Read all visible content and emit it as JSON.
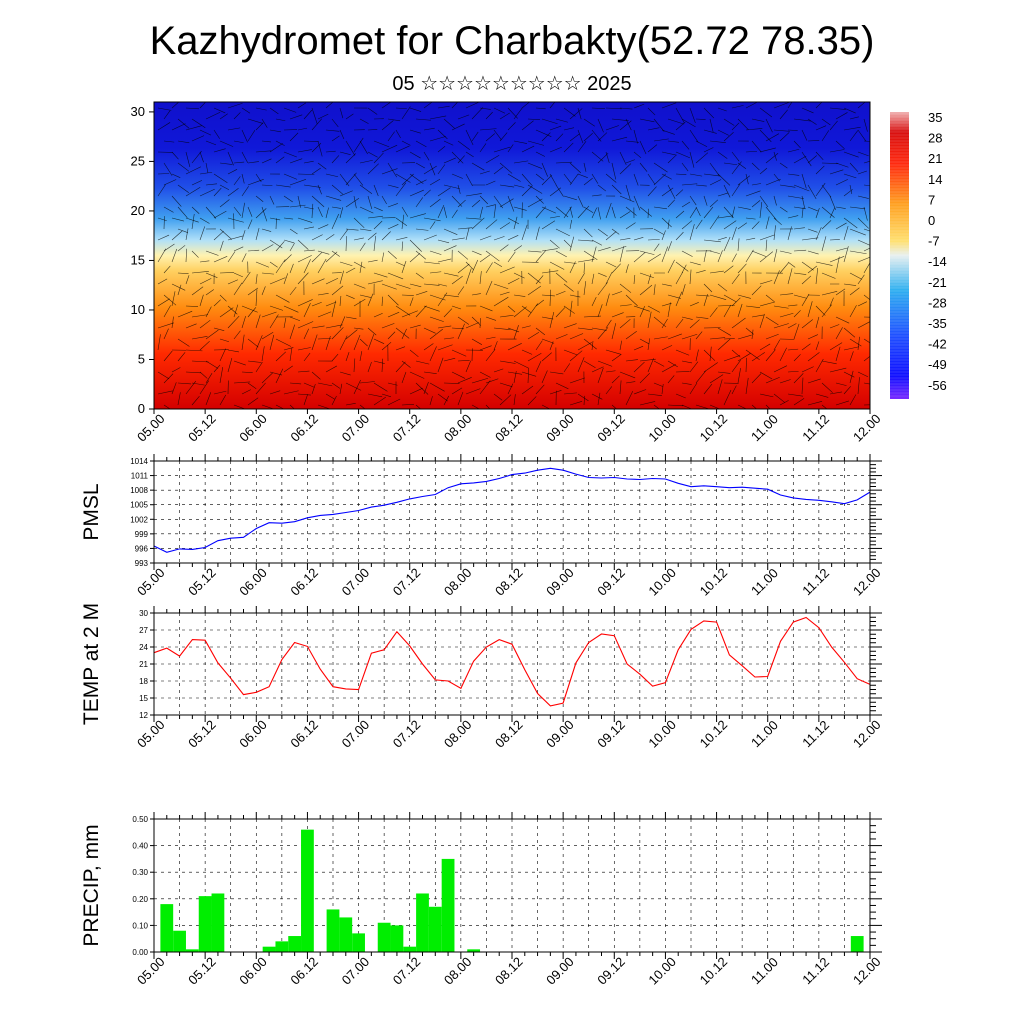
{
  "header": {
    "title": "Kazhydromet for Charbakty(52.72 78.35)",
    "subtitle": "05 ☆☆☆☆☆☆☆☆☆ 2025"
  },
  "time_labels": [
    "05.00",
    "05.12",
    "06.00",
    "06.12",
    "07.00",
    "07.12",
    "08.00",
    "08.12",
    "09.00",
    "09.12",
    "10.00",
    "10.12",
    "11.00",
    "11.12",
    "12.00"
  ],
  "colors": {
    "pmsl_line": "#0000ff",
    "temp_line": "#ff0000",
    "precip_bar": "#00ee00"
  },
  "chart_data": [
    {
      "type": "heatmap",
      "description_free": true,
      "y_ticks": [
        "0",
        "5",
        "10",
        "15",
        "20",
        "25",
        "30"
      ],
      "ylim": [
        0,
        31
      ],
      "colorbar": {
        "labels": [
          "35",
          "28",
          "21",
          "14",
          "7",
          "0",
          "-7",
          "-14",
          "-21",
          "-28",
          "-35",
          "-42",
          "-49",
          "-56"
        ],
        "range": [
          -60,
          38
        ]
      },
      "bands": [
        {
          "from": 0,
          "to": 6,
          "value": 30
        },
        {
          "from": 6,
          "to": 12,
          "value": 18
        },
        {
          "from": 12,
          "to": 16,
          "value": 4
        },
        {
          "from": 16,
          "to": 19,
          "value": -20
        },
        {
          "from": 19,
          "to": 23,
          "value": -42
        },
        {
          "from": 23,
          "to": 31,
          "value": -56
        }
      ],
      "vectors": "wind barbs overlay"
    },
    {
      "type": "line",
      "ylabel": "PMSL",
      "y_ticks": [
        "993",
        "996",
        "999",
        "1002",
        "1005",
        "1008",
        "1011",
        "1014"
      ],
      "ylim": [
        993,
        1014
      ],
      "grid": true,
      "x": [
        0,
        3,
        6,
        9,
        12,
        15,
        18,
        21,
        24,
        27,
        30,
        33,
        36,
        39,
        42,
        45,
        48,
        51,
        54,
        57,
        60,
        63,
        66,
        69,
        72,
        75,
        78,
        81,
        84,
        87,
        90,
        93,
        96,
        99,
        102,
        105,
        108,
        111,
        114,
        117,
        120,
        123,
        126,
        129,
        132,
        135,
        138,
        141,
        144,
        147,
        150,
        153,
        156,
        159,
        162,
        165,
        168
      ],
      "values": [
        996.5,
        995.2,
        995.9,
        995.8,
        996.2,
        997.6,
        998.1,
        998.3,
        1000.1,
        1001.3,
        1001.2,
        1001.5,
        1002.3,
        1002.8,
        1003.0,
        1003.4,
        1003.8,
        1004.5,
        1004.9,
        1005.5,
        1006.2,
        1006.7,
        1007.1,
        1008.5,
        1009.3,
        1009.5,
        1009.8,
        1010.4,
        1011.2,
        1011.5,
        1012.1,
        1012.5,
        1012.1,
        1011.3,
        1010.6,
        1010.5,
        1010.6,
        1010.3,
        1010.2,
        1010.4,
        1010.3,
        1009.4,
        1008.7,
        1008.9,
        1008.7,
        1008.5,
        1008.6,
        1008.4,
        1008.2,
        1007.0,
        1006.4,
        1006.1,
        1005.9,
        1005.6,
        1005.2,
        1006.0,
        1007.6
      ]
    },
    {
      "type": "line",
      "ylabel": "TEMP at 2 M",
      "y_ticks": [
        "12",
        "15",
        "18",
        "21",
        "24",
        "27",
        "30"
      ],
      "ylim": [
        12,
        30
      ],
      "grid": true,
      "x": [
        0,
        3,
        6,
        9,
        12,
        15,
        18,
        21,
        24,
        27,
        30,
        33,
        36,
        39,
        42,
        45,
        48,
        51,
        54,
        57,
        60,
        63,
        66,
        69,
        72,
        75,
        78,
        81,
        84,
        87,
        90,
        93,
        96,
        99,
        102,
        105,
        108,
        111,
        114,
        117,
        120,
        123,
        126,
        129,
        132,
        135,
        138,
        141,
        144,
        147,
        150,
        153,
        156,
        159,
        162,
        165,
        168
      ],
      "values": [
        23.0,
        23.8,
        22.4,
        25.3,
        25.2,
        21.2,
        18.5,
        15.6,
        16.0,
        17.0,
        21.8,
        24.8,
        24.1,
        20.1,
        17.0,
        16.6,
        16.5,
        22.9,
        23.5,
        26.7,
        24.2,
        21.0,
        18.2,
        18.0,
        16.7,
        21.5,
        24.0,
        25.3,
        24.5,
        20.0,
        15.8,
        13.6,
        14.1,
        21.2,
        24.8,
        26.3,
        26.0,
        21.0,
        19.2,
        17.1,
        17.7,
        23.5,
        27.1,
        28.6,
        28.4,
        22.6,
        20.7,
        18.7,
        18.8,
        25.0,
        28.4,
        29.2,
        27.4,
        24.0,
        21.3,
        18.4,
        17.4
      ]
    },
    {
      "type": "bar",
      "ylabel": "PRECIP, mm",
      "y_ticks": [
        "0.00",
        "0.10",
        "0.20",
        "0.30",
        "0.40",
        "0.50"
      ],
      "ylim": [
        0,
        0.5
      ],
      "grid": true,
      "x": [
        0,
        3,
        6,
        9,
        12,
        15,
        18,
        21,
        24,
        27,
        30,
        33,
        36,
        39,
        42,
        45,
        48,
        51,
        54,
        57,
        60,
        63,
        66,
        69,
        72,
        75,
        78,
        81,
        84,
        87,
        90,
        93,
        96,
        99,
        102,
        105,
        108,
        111,
        114,
        117,
        120,
        123,
        126,
        129,
        132,
        135,
        138,
        141,
        144,
        147,
        150,
        153,
        156,
        159,
        162,
        165,
        168
      ],
      "values": [
        0.0,
        0.18,
        0.08,
        0.01,
        0.21,
        0.22,
        0.0,
        0.0,
        0.0,
        0.02,
        0.04,
        0.06,
        0.46,
        0.0,
        0.16,
        0.13,
        0.07,
        0.0,
        0.11,
        0.1,
        0.02,
        0.22,
        0.17,
        0.35,
        0.0,
        0.01,
        0.0,
        0.0,
        0.0,
        0.0,
        0.0,
        0.0,
        0.0,
        0.0,
        0.0,
        0.0,
        0.0,
        0.0,
        0.0,
        0.0,
        0.0,
        0.0,
        0.0,
        0.0,
        0.0,
        0.0,
        0.0,
        0.0,
        0.0,
        0.0,
        0.0,
        0.0,
        0.0,
        0.0,
        0.0,
        0.06,
        0.0
      ]
    }
  ]
}
